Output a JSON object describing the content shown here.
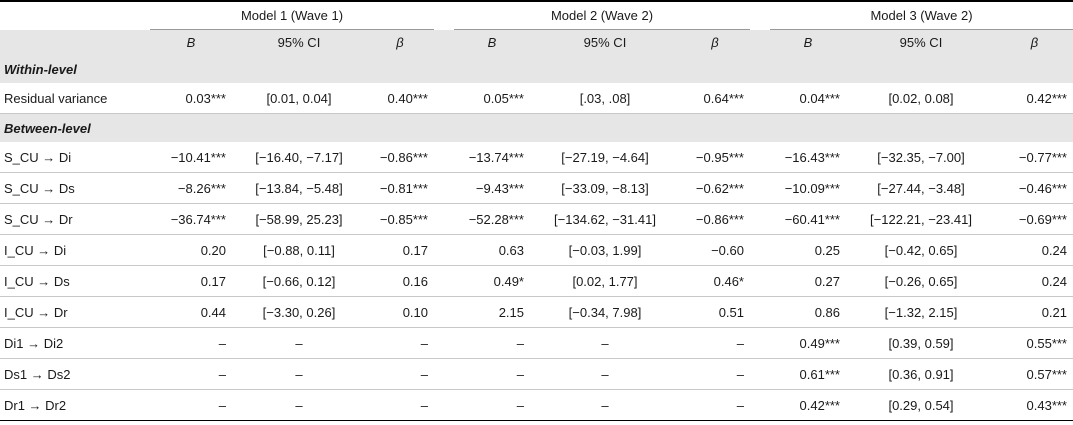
{
  "models": [
    {
      "title": "Model 1 (Wave 1)"
    },
    {
      "title": "Model 2 (Wave 2)"
    },
    {
      "title": "Model 3 (Wave 2)"
    }
  ],
  "subheaders": {
    "b": "B",
    "ci": "95% CI",
    "beta": "β"
  },
  "sections": {
    "within": "Within-level",
    "between": "Between-level"
  },
  "rows": [
    {
      "label": "Residual variance",
      "cells": [
        "0.03***",
        "[0.01, 0.04]",
        "0.40***",
        "0.05***",
        "[.03, .08]",
        "0.64***",
        "0.04***",
        "[0.02, 0.08]",
        "0.42***"
      ]
    },
    {
      "label": "S_CU → Di",
      "cells": [
        "−10.41***",
        "[−16.40, −7.17]",
        "−0.86***",
        "−13.74***",
        "[−27.19, −4.64]",
        "−0.95***",
        "−16.43***",
        "[−32.35, −7.00]",
        "−0.77***"
      ]
    },
    {
      "label": "S_CU → Ds",
      "cells": [
        "−8.26***",
        "[−13.84, −5.48]",
        "−0.81***",
        "−9.43***",
        "[−33.09, −8.13]",
        "−0.62***",
        "−10.09***",
        "[−27.44, −3.48]",
        "−0.46***"
      ]
    },
    {
      "label": "S_CU → Dr",
      "cells": [
        "−36.74***",
        "[−58.99, 25.23]",
        "−0.85***",
        "−52.28***",
        "[−134.62, −31.41]",
        "−0.86***",
        "−60.41***",
        "[−122.21, −23.41]",
        "−0.69***"
      ]
    },
    {
      "label": "I_CU → Di",
      "cells": [
        "0.20",
        "[−0.88, 0.11]",
        "0.17",
        "0.63",
        "[−0.03, 1.99]",
        "−0.60",
        "0.25",
        "[−0.42, 0.65]",
        "0.24"
      ]
    },
    {
      "label": "I_CU → Ds",
      "cells": [
        "0.17",
        "[−0.66, 0.12]",
        "0.16",
        "0.49*",
        "[0.02, 1.77]",
        "0.46*",
        "0.27",
        "[−0.26, 0.65]",
        "0.24"
      ]
    },
    {
      "label": "I_CU → Dr",
      "cells": [
        "0.44",
        "[−3.30, 0.26]",
        "0.10",
        "2.15",
        "[−0.34, 7.98]",
        "0.51",
        "0.86",
        "[−1.32, 2.15]",
        "0.21"
      ]
    },
    {
      "label": "Di1 → Di2",
      "cells": [
        "–",
        "–",
        "–",
        "–",
        "–",
        "–",
        "0.49***",
        "[0.39, 0.59]",
        "0.55***"
      ]
    },
    {
      "label": "Ds1 → Ds2",
      "cells": [
        "–",
        "–",
        "–",
        "–",
        "–",
        "–",
        "0.61***",
        "[0.36, 0.91]",
        "0.57***"
      ]
    },
    {
      "label": "Dr1 → Dr2",
      "cells": [
        "–",
        "–",
        "–",
        "–",
        "–",
        "–",
        "0.42***",
        "[0.29, 0.54]",
        "0.43***"
      ]
    }
  ]
}
